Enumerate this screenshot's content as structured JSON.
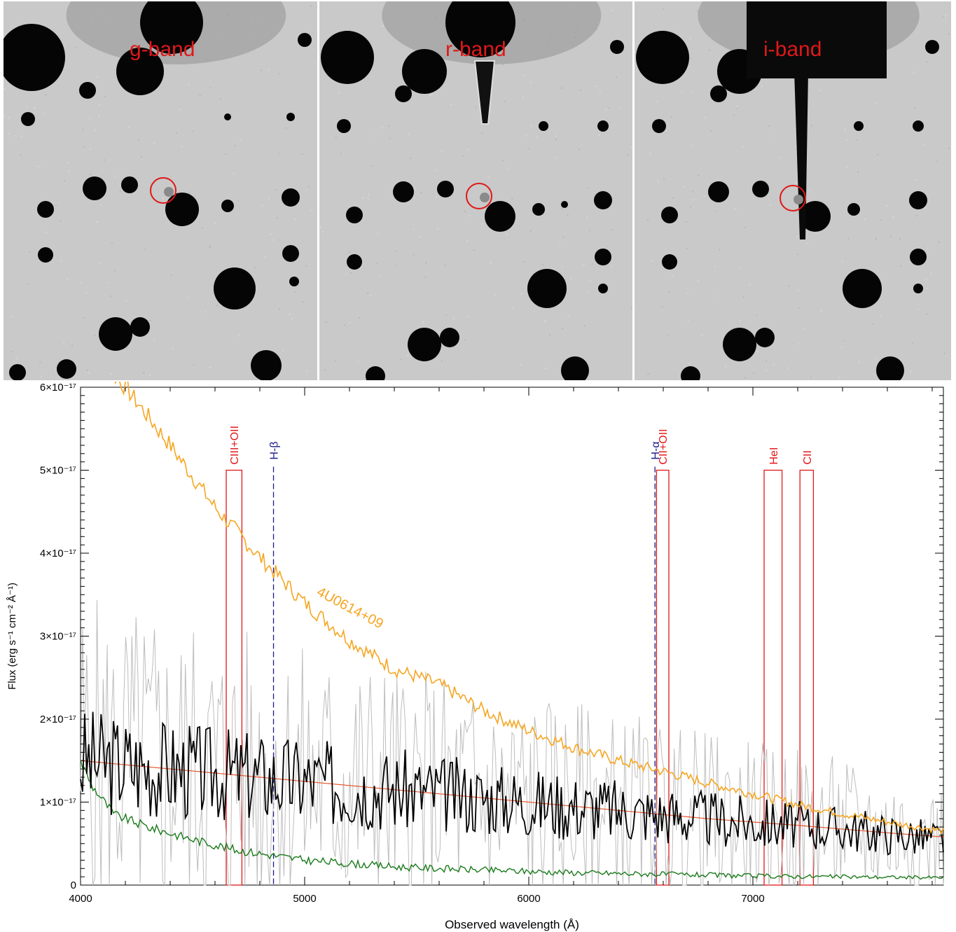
{
  "panels": [
    {
      "band": "g-band"
    },
    {
      "band": "r-band"
    },
    {
      "band": "i-band"
    }
  ],
  "chart_data": {
    "type": "line",
    "xlabel": "Observed wavelength (Å)",
    "ylabel": "Flux (erg s⁻¹ cm⁻² Å⁻¹)",
    "xlim": [
      4000,
      7850
    ],
    "ylim": [
      0,
      6e-17
    ],
    "x_ticks": [
      4000,
      5000,
      6000,
      7000
    ],
    "x_tick_labels": [
      "4000",
      "5000",
      "6000",
      "7000"
    ],
    "y_ticks": [
      0,
      1e-17,
      2e-17,
      3e-17,
      4e-17,
      5e-17,
      6e-17
    ],
    "y_tick_labels": [
      "0",
      "1×10⁻¹⁷",
      "2×10⁻¹⁷",
      "3×10⁻¹⁷",
      "4×10⁻¹⁷",
      "5×10⁻¹⁷",
      "6×10⁻¹⁷"
    ],
    "series": [
      {
        "name": "4U0614+09",
        "color": "#f5a623",
        "x": [
          4000,
          4200,
          4400,
          4600,
          4800,
          5000,
          5200,
          5400,
          5600,
          5800,
          6000,
          6200,
          6400,
          6600,
          6800,
          7000,
          7200,
          7400,
          7600,
          7850
        ],
        "y": [
          6.6e-17,
          6e-17,
          5.3e-17,
          4.55e-17,
          3.95e-17,
          3.4e-17,
          2.95e-17,
          2.6e-17,
          2.42e-17,
          2.1e-17,
          1.86e-17,
          1.66e-17,
          1.5e-17,
          1.37e-17,
          1.23e-17,
          1.1e-17,
          9.7e-18,
          8.6e-18,
          7.6e-18,
          6.5e-18
        ]
      },
      {
        "color": "#000000",
        "x": [
          4000,
          4200,
          4400,
          4600,
          4800,
          5000,
          5200,
          5400,
          5600,
          5800,
          6000,
          6200,
          6400,
          6600,
          6800,
          7000,
          7200,
          7400,
          7600,
          7850
        ],
        "y": [
          1.5e-17,
          1.45e-17,
          1.4e-17,
          1.35e-17,
          1.3e-17,
          1.25e-17,
          1.2e-17,
          1.15e-17,
          1.1e-17,
          1.05e-17,
          1e-17,
          9.5e-18,
          9e-18,
          8.5e-18,
          8e-18,
          7.5e-18,
          7.2e-18,
          6.8e-18,
          6.2e-18,
          5.5e-18
        ]
      },
      {
        "color": "#e8542c",
        "x": [
          4000,
          4400,
          4800,
          5200,
          5600,
          6000,
          6400,
          6800,
          7200,
          7600,
          7850
        ],
        "y": [
          1.5e-17,
          1.4e-17,
          1.3e-17,
          1.2e-17,
          1.1e-17,
          1e-17,
          9e-18,
          8e-18,
          7.2e-18,
          6.3e-18,
          5.8e-18
        ]
      },
      {
        "color": "#1a7a1a",
        "x": [
          4000,
          4050,
          4150,
          4300,
          4500,
          4700,
          5000,
          5400,
          5800,
          6200,
          6600,
          7000,
          7400,
          7850
        ],
        "y": [
          1.5e-17,
          1.2e-17,
          8.5e-18,
          7e-18,
          5.5e-18,
          4.2e-18,
          3e-18,
          2.2e-18,
          1.8e-18,
          1.5e-18,
          1.3e-18,
          1.1e-18,
          1e-18,
          9e-19
        ]
      }
    ],
    "line_markers": [
      {
        "label": "CIII+OII",
        "color": "#e01818",
        "box": [
          4650,
          4720
        ]
      },
      {
        "label": "H-β",
        "color": "#1a1a8c",
        "x": 4861
      },
      {
        "label": "H-α",
        "color": "#1a1a8c",
        "x": 6563
      },
      {
        "label": "CII+OII",
        "color": "#e01818",
        "box": [
          6570,
          6625
        ]
      },
      {
        "label": "HeI",
        "color": "#e01818",
        "box": [
          7050,
          7130
        ]
      },
      {
        "label": "CII",
        "color": "#e01818",
        "box": [
          7210,
          7270
        ]
      }
    ],
    "annotations": [
      {
        "text": "4U0614+09",
        "color": "#f5a623"
      }
    ]
  }
}
